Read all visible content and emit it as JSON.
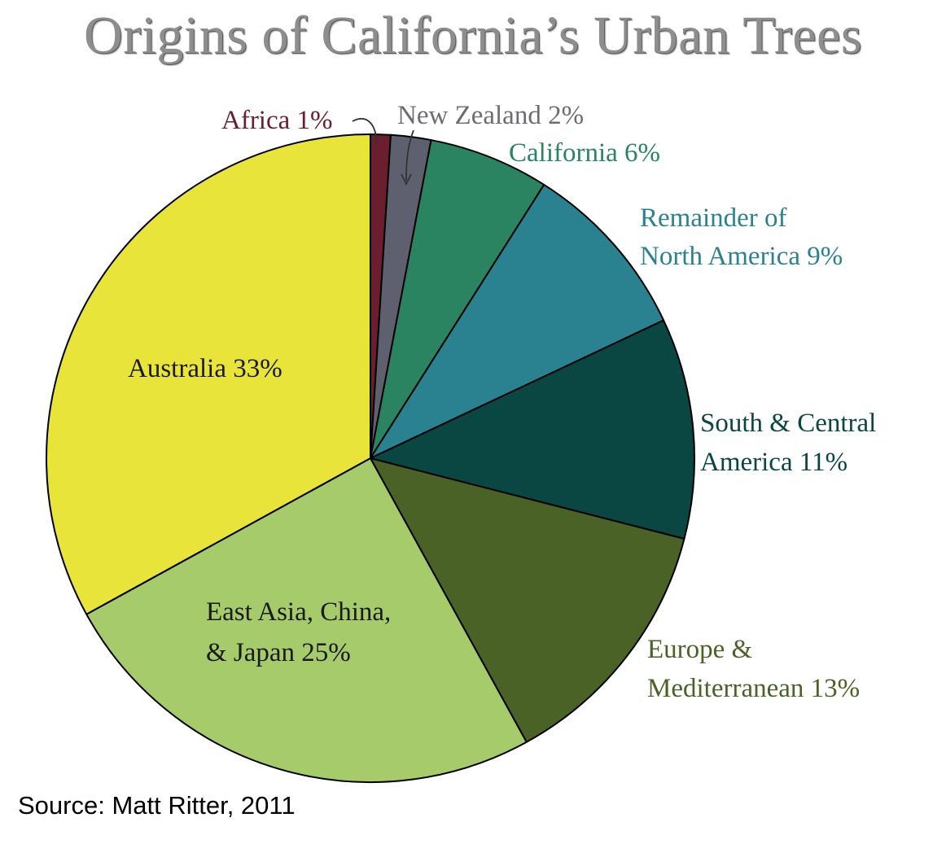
{
  "chart_data": {
    "type": "pie",
    "title": "Origins of California’s Urban Trees",
    "start_angle_deg": 0,
    "direction": "clockwise",
    "slices": [
      {
        "key": "africa",
        "label": "Africa 1%",
        "value": 1,
        "color": "#6b1e2e",
        "label_color": "#6b1e2e"
      },
      {
        "key": "new-zealand",
        "label": "New Zealand 2%",
        "value": 2,
        "color": "#5e6070",
        "label_color": "#6a6c78"
      },
      {
        "key": "california",
        "label": "California 6%",
        "value": 6,
        "color": "#2a8462",
        "label_color": "#2a8462"
      },
      {
        "key": "remainder-north-america",
        "label": "Remainder of North America 9%",
        "label_lines": [
          "Remainder of",
          "North America 9%"
        ],
        "value": 9,
        "color": "#2a8290",
        "label_color": "#2a8290"
      },
      {
        "key": "south-central-america",
        "label": "South & Central America 11%",
        "label_lines": [
          "South & Central",
          "America 11%"
        ],
        "value": 11,
        "color": "#0a4743",
        "label_color": "#0a4743"
      },
      {
        "key": "europe-mediterranean",
        "label": "Europe & Mediterranean 13%",
        "label_lines": [
          "Europe &",
          "Mediterranean 13%"
        ],
        "value": 13,
        "color": "#4a6226",
        "label_color": "#4a6226"
      },
      {
        "key": "east-asia-china-japan",
        "label": "East Asia, China, & Japan 25%",
        "label_lines": [
          "East Asia, China,",
          "& Japan 25%"
        ],
        "value": 25,
        "color": "#a6cb6a",
        "label_color": "#1a1a1a"
      },
      {
        "key": "australia",
        "label": "Australia 33%",
        "value": 33,
        "color": "#e9e439",
        "label_color": "#1a1a1a"
      }
    ]
  },
  "source_note": "Source: Matt Ritter, 2011"
}
